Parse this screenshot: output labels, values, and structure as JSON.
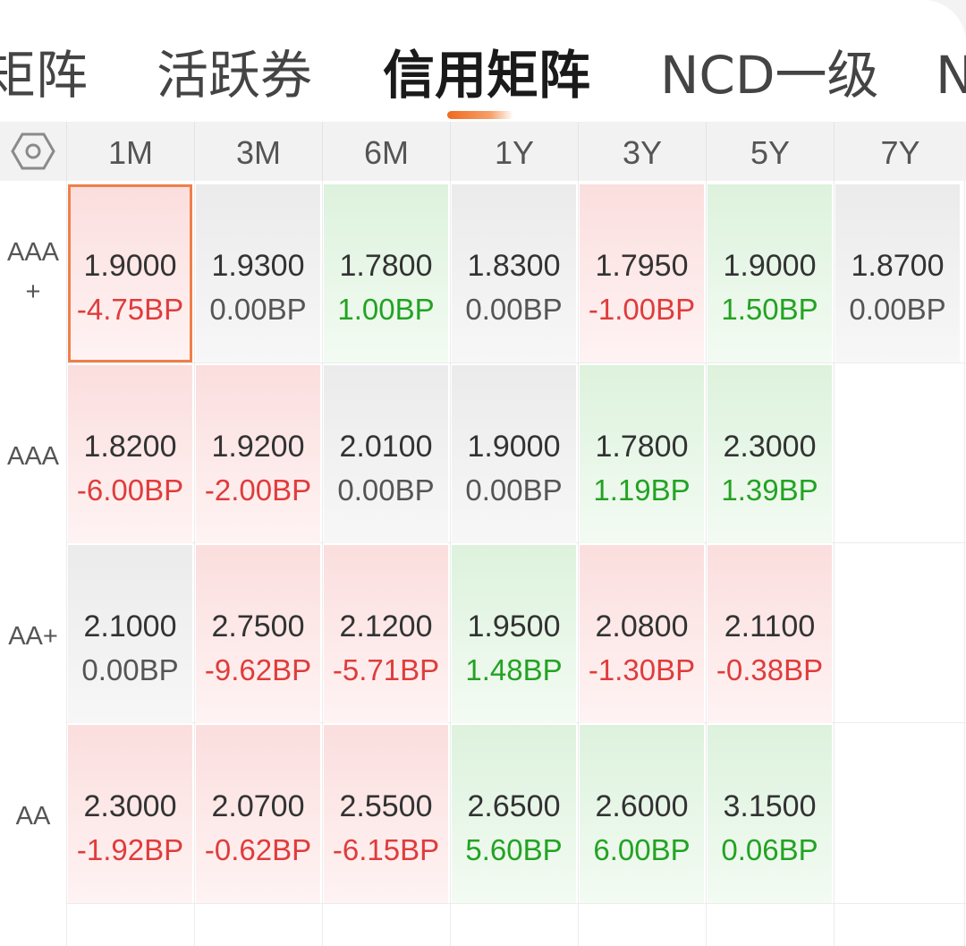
{
  "tabs": [
    {
      "label": "矩阵",
      "active": false
    },
    {
      "label": "活跃券",
      "active": false
    },
    {
      "label": "信用矩阵",
      "active": true
    },
    {
      "label": "NCD一级",
      "active": false
    },
    {
      "label": "N",
      "active": false
    }
  ],
  "header": {
    "settings_icon": "hexagon-settings-icon",
    "columns": [
      "1M",
      "3M",
      "6M",
      "1Y",
      "3Y",
      "5Y",
      "7Y"
    ]
  },
  "rows": [
    {
      "rating_line1": "AAA",
      "rating_line2": "+",
      "cells": [
        {
          "yield": "1.9000",
          "change": "-4.75BP",
          "trend": "neg",
          "selected": true
        },
        {
          "yield": "1.9300",
          "change": "0.00BP",
          "trend": "flat"
        },
        {
          "yield": "1.7800",
          "change": "1.00BP",
          "trend": "pos"
        },
        {
          "yield": "1.8300",
          "change": "0.00BP",
          "trend": "flat"
        },
        {
          "yield": "1.7950",
          "change": "-1.00BP",
          "trend": "neg"
        },
        {
          "yield": "1.9000",
          "change": "1.50BP",
          "trend": "pos"
        },
        {
          "yield": "1.8700",
          "change": "0.00BP",
          "trend": "flat"
        }
      ]
    },
    {
      "rating_line1": "AAA",
      "rating_line2": "",
      "cells": [
        {
          "yield": "1.8200",
          "change": "-6.00BP",
          "trend": "neg"
        },
        {
          "yield": "1.9200",
          "change": "-2.00BP",
          "trend": "neg"
        },
        {
          "yield": "2.0100",
          "change": "0.00BP",
          "trend": "flat"
        },
        {
          "yield": "1.9000",
          "change": "0.00BP",
          "trend": "flat"
        },
        {
          "yield": "1.7800",
          "change": "1.19BP",
          "trend": "pos"
        },
        {
          "yield": "2.3000",
          "change": "1.39BP",
          "trend": "pos"
        }
      ]
    },
    {
      "rating_line1": "AA+",
      "rating_line2": "",
      "cells": [
        {
          "yield": "2.1000",
          "change": "0.00BP",
          "trend": "flat"
        },
        {
          "yield": "2.7500",
          "change": "-9.62BP",
          "trend": "neg"
        },
        {
          "yield": "2.1200",
          "change": "-5.71BP",
          "trend": "neg"
        },
        {
          "yield": "1.9500",
          "change": "1.48BP",
          "trend": "pos"
        },
        {
          "yield": "2.0800",
          "change": "-1.30BP",
          "trend": "neg"
        },
        {
          "yield": "2.1100",
          "change": "-0.38BP",
          "trend": "neg"
        }
      ]
    },
    {
      "rating_line1": "AA",
      "rating_line2": "",
      "cells": [
        {
          "yield": "2.3000",
          "change": "-1.92BP",
          "trend": "neg"
        },
        {
          "yield": "2.0700",
          "change": "-0.62BP",
          "trend": "neg"
        },
        {
          "yield": "2.5500",
          "change": "-6.15BP",
          "trend": "neg"
        },
        {
          "yield": "2.6500",
          "change": "5.60BP",
          "trend": "pos"
        },
        {
          "yield": "2.6000",
          "change": "6.00BP",
          "trend": "pos"
        },
        {
          "yield": "3.1500",
          "change": "0.06BP",
          "trend": "pos"
        }
      ]
    }
  ],
  "colors": {
    "accent": "#f06a1f",
    "negative": "#e03c3c",
    "positive": "#22a322",
    "neutral": "#555555"
  }
}
